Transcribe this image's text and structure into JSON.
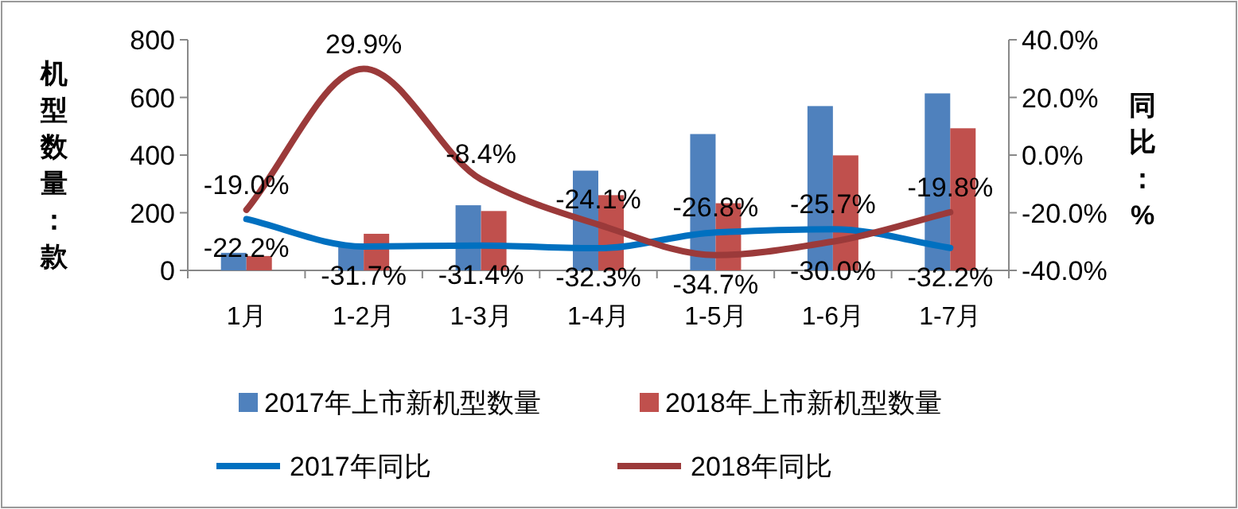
{
  "chart_data": {
    "type": "bar",
    "ylabel": "机型数量：款",
    "y2label": "同比：%",
    "categories": [
      "1月",
      "1-2月",
      "1-3月",
      "1-4月",
      "1-5月",
      "1-6月",
      "1-7月"
    ],
    "series": [
      {
        "name": "2017年上市新机型数量",
        "color": "#4f81bd",
        "values": [
          61,
          92,
          226,
          346,
          473,
          570,
          614
        ]
      },
      {
        "name": "2018年上市新机型数量",
        "color": "#c0504d",
        "values": [
          50,
          127,
          206,
          261,
          233,
          399,
          493
        ]
      },
      {
        "name": "2017年同比",
        "type": "line",
        "axis": "y2",
        "color": "#0070c0",
        "values": [
          -22.2,
          -31.7,
          -31.4,
          -32.3,
          -26.8,
          -25.7,
          -32.2
        ],
        "value_labels": [
          "-22.2%",
          "-31.7%",
          "-31.4%",
          "-32.3%",
          "-26.8%",
          "-25.7%",
          "-32.2%"
        ]
      },
      {
        "name": "2018年同比",
        "type": "line",
        "axis": "y2",
        "color": "#9b3a3a",
        "values": [
          -19.0,
          29.9,
          -8.4,
          -24.1,
          -34.7,
          -30.0,
          -19.8
        ],
        "value_labels": [
          "-19.0%",
          "29.9%",
          "-8.4%",
          "-24.1%",
          "-34.7%",
          "-30.0%",
          "-19.8%"
        ]
      }
    ],
    "ylim": [
      0,
      800
    ],
    "yticks": [
      0,
      200,
      400,
      600,
      800
    ],
    "y2lim": [
      -40,
      40
    ],
    "y2ticks": [
      {
        "value": -40,
        "label": "-40.0%"
      },
      {
        "value": -20,
        "label": "-20.0%"
      },
      {
        "value": 0,
        "label": "0.0%"
      },
      {
        "value": 20,
        "label": "20.0%"
      },
      {
        "value": 40,
        "label": "40.0%"
      }
    ],
    "grid": false,
    "legend": "bottom"
  }
}
